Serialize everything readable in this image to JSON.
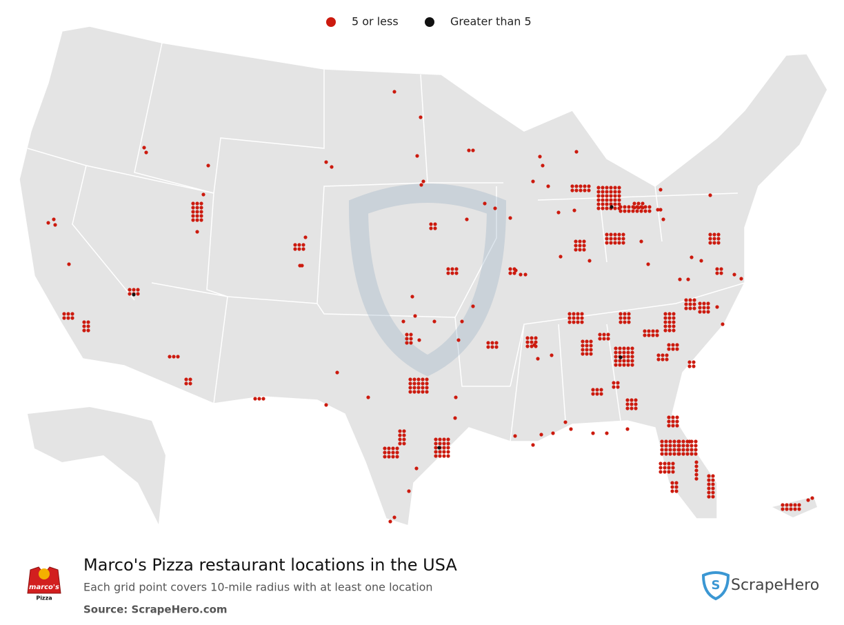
{
  "legend": [
    {
      "label": "5 or less",
      "color": "#cc1a0e"
    },
    {
      "label": "Greater than 5",
      "color": "#111111"
    }
  ],
  "title": "Marco's Pizza restaurant locations in the USA",
  "subtitle": "Each grid point covers 10-mile radius with at least one location",
  "source": "Source: ScrapeHero.com",
  "brand": "ScrapeHero",
  "logo": {
    "name": "marco's",
    "sub": "Pizza"
  }
}
